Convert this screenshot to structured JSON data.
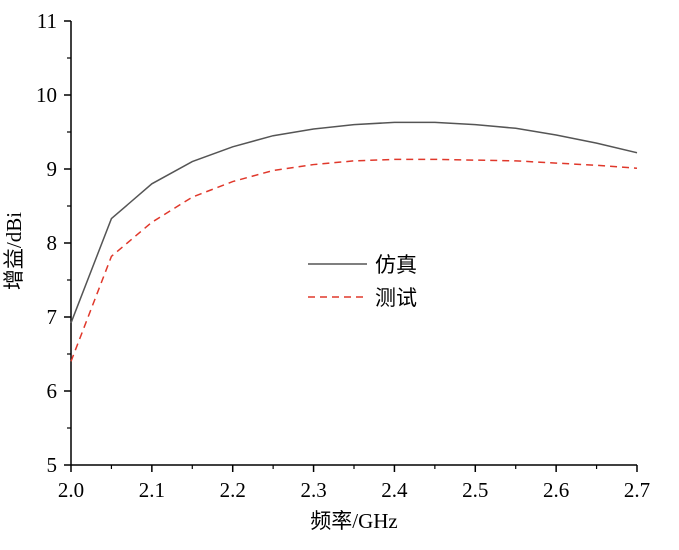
{
  "chart_data": {
    "type": "line",
    "xlabel": "频率/GHz",
    "ylabel": "增益/dBi",
    "xlim": [
      2.0,
      2.7
    ],
    "ylim": [
      5,
      11
    ],
    "xticks": [
      "2.0",
      "2.1",
      "2.2",
      "2.3",
      "2.4",
      "2.5",
      "2.6",
      "2.7"
    ],
    "yticks": [
      "5",
      "6",
      "7",
      "8",
      "9",
      "10",
      "11"
    ],
    "grid": false,
    "legend_position": "center",
    "x": [
      2.0,
      2.05,
      2.1,
      2.15,
      2.2,
      2.25,
      2.3,
      2.35,
      2.4,
      2.45,
      2.5,
      2.55,
      2.6,
      2.65,
      2.7
    ],
    "series": [
      {
        "name": "仿真",
        "color": "#555555",
        "style": "solid",
        "values": [
          6.92,
          8.33,
          8.8,
          9.1,
          9.3,
          9.45,
          9.54,
          9.6,
          9.63,
          9.63,
          9.6,
          9.55,
          9.46,
          9.35,
          9.22
        ]
      },
      {
        "name": "测试",
        "color": "#e0382b",
        "style": "dashed",
        "values": [
          6.4,
          7.82,
          8.28,
          8.62,
          8.83,
          8.98,
          9.06,
          9.11,
          9.13,
          9.13,
          9.12,
          9.11,
          9.08,
          9.05,
          9.01
        ]
      }
    ]
  }
}
